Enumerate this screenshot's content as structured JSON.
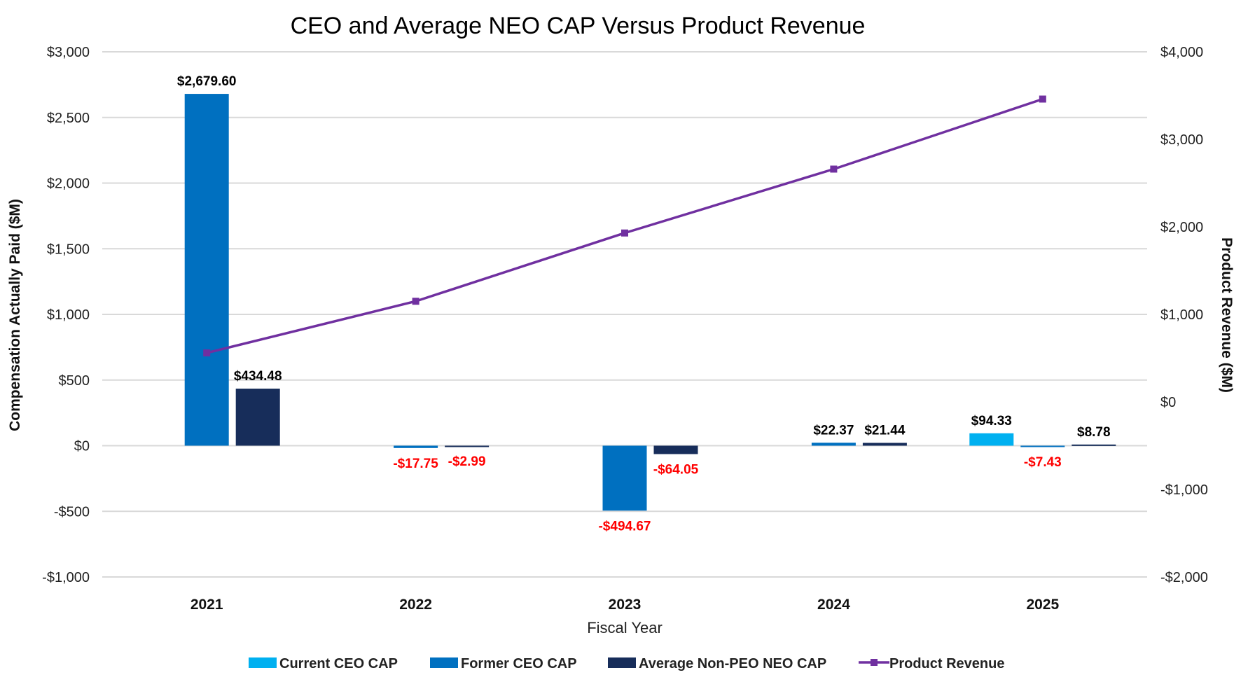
{
  "chart_data": {
    "type": "bar",
    "title": "CEO and Average NEO CAP Versus Product Revenue",
    "xlabel": "Fiscal Year",
    "ylabel": "Compensation Actually Paid ($M)",
    "y2label": "Product Revenue ($M)",
    "categories": [
      "2021",
      "2022",
      "2023",
      "2024",
      "2025"
    ],
    "ylim": [
      -1000,
      3000
    ],
    "yticks": [
      -1000,
      -500,
      0,
      500,
      1000,
      1500,
      2000,
      2500,
      3000
    ],
    "ytick_labels": [
      "-$1,000",
      "-$500",
      "$0",
      "$500",
      "$1,000",
      "$1,500",
      "$2,000",
      "$2,500",
      "$3,000"
    ],
    "y2lim": [
      -2000,
      4000
    ],
    "y2ticks": [
      -2000,
      -1000,
      0,
      1000,
      2000,
      3000,
      4000
    ],
    "y2tick_labels": [
      "-$2,000",
      "-$1,000",
      "$0",
      "$1,000",
      "$2,000",
      "$3,000",
      "$4,000"
    ],
    "grid": true,
    "legend_placement": "bottom",
    "series": [
      {
        "name": "Current CEO CAP",
        "type": "bar",
        "color": "#00b0f0",
        "values": [
          null,
          null,
          null,
          null,
          94.33
        ],
        "labels": [
          "",
          "",
          "",
          "",
          "$94.33"
        ]
      },
      {
        "name": "Former CEO CAP",
        "type": "bar",
        "color": "#0070c0",
        "values": [
          2679.6,
          -17.75,
          -494.67,
          22.37,
          -7.43
        ],
        "labels": [
          "$2,679.60",
          "-$17.75",
          "-$494.67",
          "$22.37",
          "-$7.43"
        ]
      },
      {
        "name": "Average Non-PEO NEO CAP",
        "type": "bar",
        "color": "#172d5a",
        "values": [
          434.48,
          -2.99,
          -64.05,
          21.44,
          8.78
        ],
        "labels": [
          "$434.48",
          "-$2.99",
          "-$64.05",
          "$21.44",
          "$8.78"
        ]
      },
      {
        "name": "Product Revenue",
        "type": "line",
        "axis": "right",
        "color": "#7030a0",
        "values": [
          560,
          1150,
          1930,
          2660,
          3460
        ]
      }
    ],
    "label_colors": {
      "positive": "#000000",
      "negative": "#ff0000"
    }
  }
}
